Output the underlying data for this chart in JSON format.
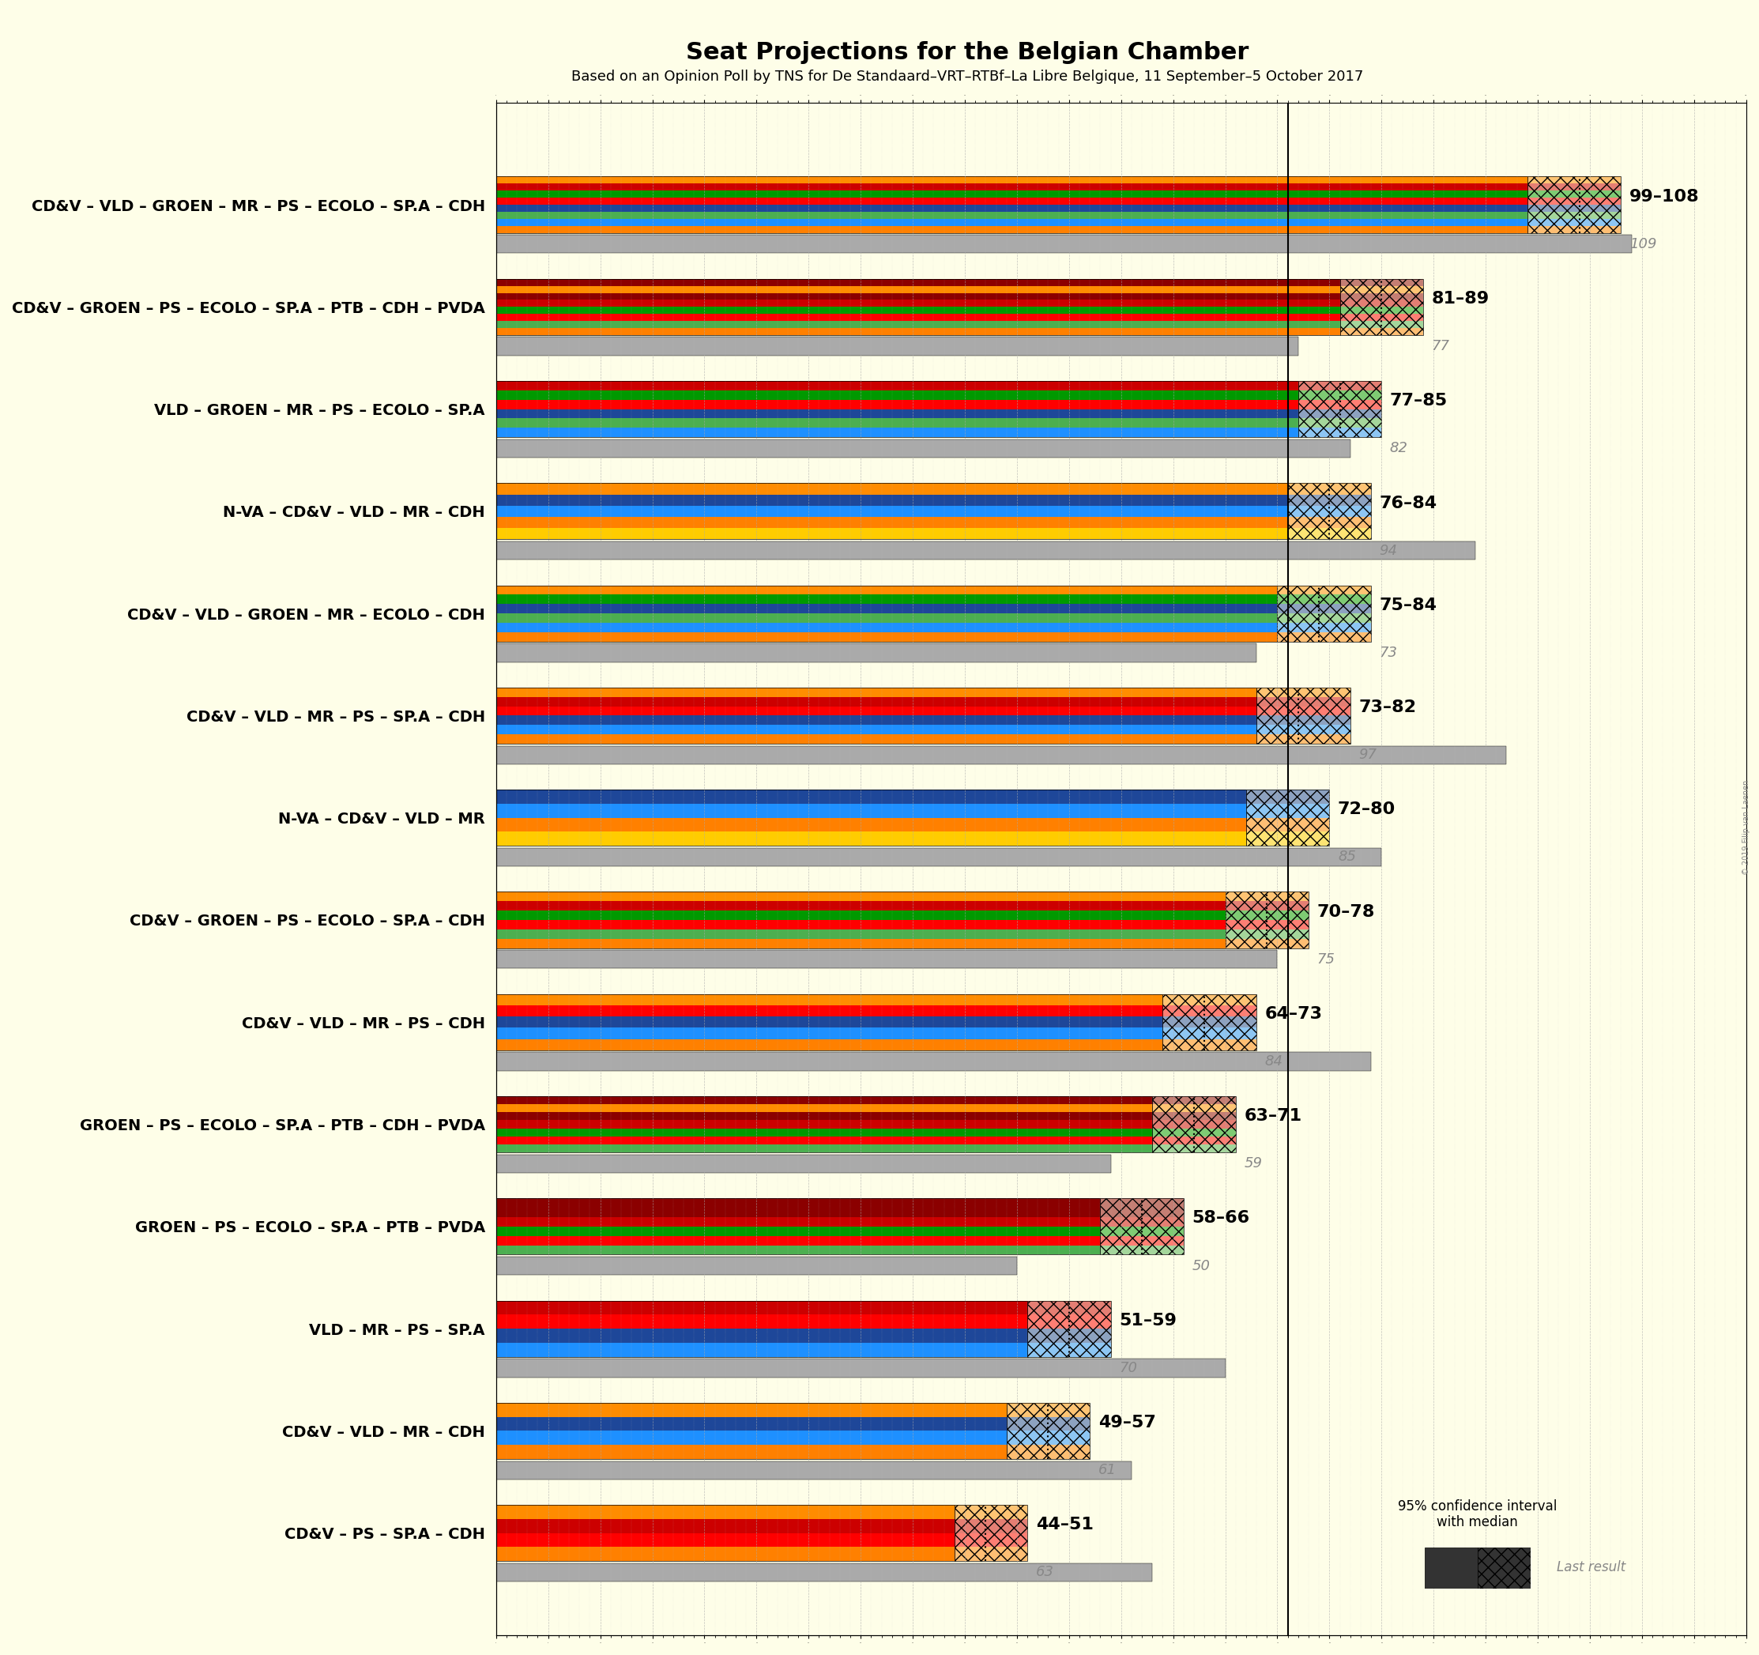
{
  "title": "Seat Projections for the Belgian Chamber",
  "subtitle": "Based on an Opinion Poll by TNS for De Standaard–VRT–RTBf–La Libre Belgique, 11 September–5 October 2017",
  "background_color": "#FEFEE8",
  "coalitions": [
    {
      "label": "CD&V – VLD – GROEN – MR – PS – ECOLO – SP.A – CDH",
      "low": 99,
      "high": 108,
      "median": 104,
      "last_result": 109,
      "colors": [
        "#FF8000",
        "#1E90FF",
        "#4CAF50",
        "#1E4799",
        "#FF0000",
        "#009900",
        "#FF0000",
        "#FF8C00"
      ]
    },
    {
      "label": "CD&V – GROEN – PS – ECOLO – SP.A – PTB – CDH – PVDA",
      "low": 81,
      "high": 89,
      "median": 85,
      "last_result": 77,
      "colors": [
        "#FF8000",
        "#4CAF50",
        "#FF0000",
        "#009900",
        "#FF0000",
        "#CC0000",
        "#FF8C00",
        "#CC0000"
      ]
    },
    {
      "label": "VLD – GROEN – MR – PS – ECOLO – SP.A",
      "low": 77,
      "high": 85,
      "median": 81,
      "last_result": 82,
      "colors": [
        "#1E90FF",
        "#4CAF50",
        "#1E4799",
        "#FF0000",
        "#009900",
        "#FF0000"
      ]
    },
    {
      "label": "N-VA – CD&V – VLD – MR – CDH",
      "low": 76,
      "high": 84,
      "median": 80,
      "last_result": 94,
      "colors": [
        "#FFCC00",
        "#FF8000",
        "#1E90FF",
        "#1E4799",
        "#FF8C00"
      ]
    },
    {
      "label": "CD&V – VLD – GROEN – MR – ECOLO – CDH",
      "low": 75,
      "high": 84,
      "median": 79,
      "last_result": 73,
      "colors": [
        "#FF8000",
        "#1E90FF",
        "#4CAF50",
        "#1E4799",
        "#009900",
        "#FF8C00"
      ]
    },
    {
      "label": "CD&V – VLD – MR – PS – SP.A – CDH",
      "low": 73,
      "high": 82,
      "median": 77,
      "last_result": 97,
      "colors": [
        "#FF8000",
        "#1E90FF",
        "#1E4799",
        "#FF0000",
        "#FF0000",
        "#FF8C00"
      ]
    },
    {
      "label": "N-VA – CD&V – VLD – MR",
      "low": 72,
      "high": 80,
      "median": 76,
      "last_result": 85,
      "colors": [
        "#FFCC00",
        "#FF8000",
        "#1E90FF",
        "#1E4799"
      ]
    },
    {
      "label": "CD&V – GROEN – PS – ECOLO – SP.A – CDH",
      "low": 70,
      "high": 78,
      "median": 74,
      "last_result": 75,
      "colors": [
        "#FF8000",
        "#4CAF50",
        "#FF0000",
        "#009900",
        "#FF0000",
        "#FF8C00"
      ]
    },
    {
      "label": "CD&V – VLD – MR – PS – CDH",
      "low": 64,
      "high": 73,
      "median": 68,
      "last_result": 84,
      "colors": [
        "#FF8000",
        "#1E90FF",
        "#1E4799",
        "#FF0000",
        "#FF8C00"
      ]
    },
    {
      "label": "GROEN – PS – ECOLO – SP.A – PTB – CDH – PVDA",
      "low": 63,
      "high": 71,
      "median": 67,
      "last_result": 59,
      "colors": [
        "#4CAF50",
        "#FF0000",
        "#009900",
        "#FF0000",
        "#CC0000",
        "#FF8C00",
        "#CC0000"
      ]
    },
    {
      "label": "GROEN – PS – ECOLO – SP.A – PTB – PVDA",
      "low": 58,
      "high": 66,
      "median": 62,
      "last_result": 50,
      "colors": [
        "#4CAF50",
        "#FF0000",
        "#009900",
        "#FF0000",
        "#CC0000",
        "#CC0000"
      ]
    },
    {
      "label": "VLD – MR – PS – SP.A",
      "low": 51,
      "high": 59,
      "median": 55,
      "last_result": 70,
      "colors": [
        "#1E90FF",
        "#1E4799",
        "#FF0000",
        "#FF0000"
      ]
    },
    {
      "label": "CD&V – VLD – MR – CDH",
      "low": 49,
      "high": 57,
      "median": 53,
      "last_result": 61,
      "colors": [
        "#FF8000",
        "#1E90FF",
        "#1E4799",
        "#FF8C00"
      ]
    },
    {
      "label": "CD&V – PS – SP.A – CDH",
      "low": 44,
      "high": 51,
      "median": 47,
      "last_result": 63,
      "colors": [
        "#FF8000",
        "#FF0000",
        "#FF0000",
        "#FF8C00"
      ]
    }
  ],
  "xmin": 0,
  "xmax": 120,
  "majority_line": 76,
  "party_colors": {
    "N-VA": "#FFCC00",
    "CD&V": "#FF8000",
    "VLD": "#1E90FF",
    "GROEN": "#4CAF50",
    "MR": "#1E4799",
    "PS": "#FF0000",
    "ECOLO": "#009900",
    "SP.A": "#CC0000",
    "CDH": "#FF8C00",
    "PTB": "#8B0000",
    "PVDA": "#8B0000"
  }
}
